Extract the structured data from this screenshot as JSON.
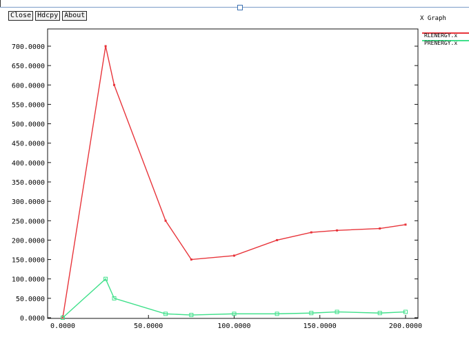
{
  "window": {
    "title": "X Graph"
  },
  "toolbar": {
    "buttons": [
      {
        "label": "Close"
      },
      {
        "label": "Hdcpy"
      },
      {
        "label": "About"
      }
    ]
  },
  "legend": {
    "entries": [
      {
        "label": "RLENERGY.x",
        "color": "#e8343a"
      },
      {
        "label": "PRENERGY.x",
        "color": "#3fe08a"
      }
    ]
  },
  "chart_data": {
    "type": "line",
    "title": "",
    "xlabel": "",
    "ylabel": "",
    "xlim": [
      0,
      200
    ],
    "ylim": [
      0,
      700000
    ],
    "x_ticks": [
      "0.0000",
      "50.0000",
      "100.0000",
      "150.0000",
      "200.0000"
    ],
    "x_tick_values": [
      0,
      50,
      100,
      150,
      200
    ],
    "y_ticks": [
      "0.0000",
      "50.0000",
      "100.0000",
      "150.0000",
      "200.0000",
      "250.0000",
      "300.0000",
      "350.0000",
      "400.0000",
      "450.0000",
      "500.0000",
      "550.0000",
      "600.0000",
      "650.0000",
      "700.0000"
    ],
    "y_tick_values": [
      0,
      50000,
      100000,
      150000,
      200000,
      250000,
      300000,
      350000,
      400000,
      450000,
      500000,
      550000,
      600000,
      650000,
      700000
    ],
    "grid": false,
    "series": [
      {
        "name": "RLENERGY.x",
        "color": "#e8343a",
        "points": [
          [
            0,
            0
          ],
          [
            25,
            700000
          ],
          [
            30,
            600000
          ],
          [
            60,
            250000
          ],
          [
            75,
            150000
          ],
          [
            100,
            160000
          ],
          [
            125,
            200000
          ],
          [
            145,
            220000
          ],
          [
            160,
            225000
          ],
          [
            185,
            230000
          ],
          [
            200,
            240000
          ]
        ]
      },
      {
        "name": "PRENERGY.x",
        "color": "#3fe08a",
        "points": [
          [
            0,
            0
          ],
          [
            25,
            100000
          ],
          [
            30,
            50000
          ],
          [
            60,
            10000
          ],
          [
            75,
            7000
          ],
          [
            100,
            10000
          ],
          [
            125,
            10000
          ],
          [
            145,
            12000
          ],
          [
            160,
            15000
          ],
          [
            185,
            12000
          ],
          [
            200,
            15000
          ]
        ]
      }
    ]
  }
}
